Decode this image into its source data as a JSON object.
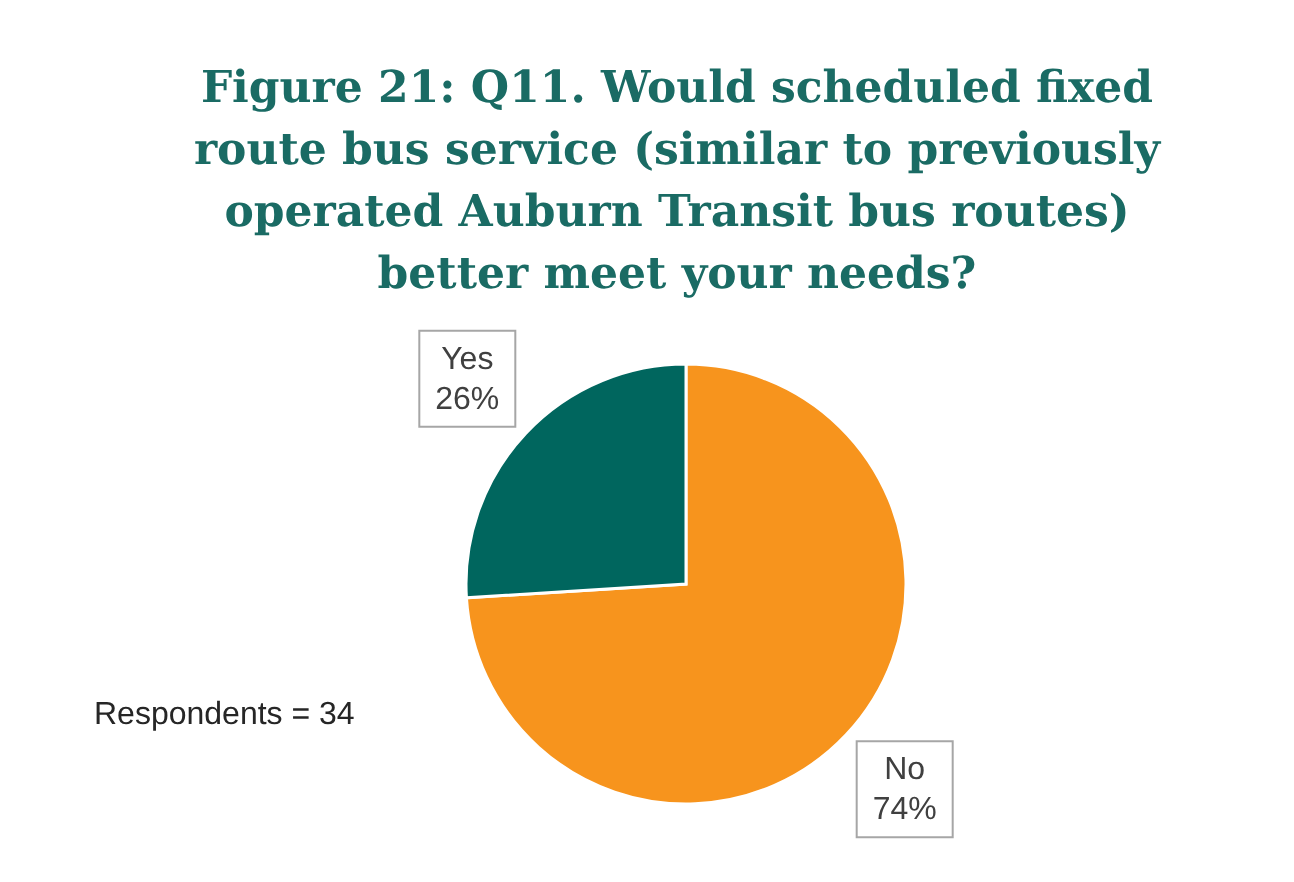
{
  "chart_data": {
    "type": "pie",
    "title": "Figure 21: Q11. Would scheduled fixed route bus service (similar to previously operated Auburn Transit bus routes) better meet your needs?",
    "categories": [
      "Yes",
      "No"
    ],
    "values": [
      26,
      74
    ],
    "colors": [
      "#00665e",
      "#f7941d"
    ],
    "value_labels": [
      "26%",
      "74%"
    ],
    "annotations": [
      "Respondents = 34"
    ]
  }
}
